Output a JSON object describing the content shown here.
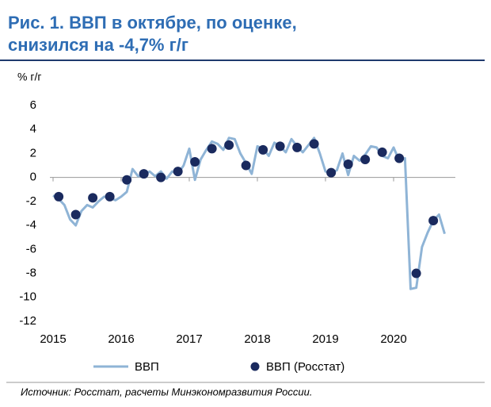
{
  "chart_data": {
    "type": "line",
    "title": "Рис. 1. ВВП в октябре, по оценке,",
    "title_line2": "снизился на -4,7% г/г",
    "y_label": "% г/г",
    "source": "Источник: Росстат, расчеты Минэкономразвития России.",
    "xlim": [
      2015,
      2021
    ],
    "xticks": [
      2015,
      2016,
      2017,
      2018,
      2019,
      2020
    ],
    "ylim": [
      -12,
      6
    ],
    "yticks": [
      6,
      4,
      2,
      0,
      -2,
      -4,
      -6,
      -8,
      -10,
      -12
    ],
    "series": [
      {
        "name": "ВВП",
        "type": "line",
        "color": "#8fb4d6",
        "x": [
          2015,
          2015.083,
          2015.167,
          2015.25,
          2015.333,
          2015.417,
          2015.5,
          2015.583,
          2015.667,
          2015.75,
          2015.833,
          2015.917,
          2016,
          2016.083,
          2016.167,
          2016.25,
          2016.333,
          2016.417,
          2016.5,
          2016.583,
          2016.667,
          2016.75,
          2016.833,
          2016.917,
          2017,
          2017.083,
          2017.167,
          2017.25,
          2017.333,
          2017.417,
          2017.5,
          2017.583,
          2017.667,
          2017.75,
          2017.833,
          2017.917,
          2018,
          2018.083,
          2018.167,
          2018.25,
          2018.333,
          2018.417,
          2018.5,
          2018.583,
          2018.667,
          2018.75,
          2018.833,
          2018.917,
          2019,
          2019.083,
          2019.167,
          2019.25,
          2019.333,
          2019.417,
          2019.5,
          2019.583,
          2019.667,
          2019.75,
          2019.833,
          2019.917,
          2020,
          2020.083,
          2020.167,
          2020.25,
          2020.333,
          2020.417,
          2020.5,
          2020.583,
          2020.667,
          2020.75
        ],
        "values": [
          -1.5,
          -1.8,
          -2.3,
          -3.5,
          -4.0,
          -2.8,
          -2.3,
          -2.5,
          -2.0,
          -1.6,
          -1.7,
          -1.9,
          -1.6,
          -1.2,
          0.7,
          0.1,
          0.2,
          0.5,
          0.1,
          0.5,
          -0.1,
          0.5,
          0.3,
          1.0,
          2.4,
          -0.2,
          1.5,
          2.3,
          3.0,
          2.8,
          2.3,
          3.3,
          3.2,
          2.0,
          1.2,
          0.3,
          2.6,
          2.4,
          1.8,
          2.9,
          2.6,
          2.1,
          3.2,
          2.6,
          2.1,
          2.7,
          3.3,
          2.0,
          0.5,
          0.4,
          0.6,
          2.0,
          0.2,
          1.8,
          1.4,
          1.9,
          2.6,
          2.5,
          1.8,
          1.6,
          2.5,
          1.4,
          1.6,
          -9.3,
          -9.2,
          -5.8,
          -4.6,
          -3.6,
          -3.1,
          -4.7
        ]
      },
      {
        "name": "ВВП (Росстат)",
        "type": "scatter",
        "color": "#1a2a5e",
        "x": [
          2015.083,
          2015.333,
          2015.583,
          2015.833,
          2016.083,
          2016.333,
          2016.583,
          2016.833,
          2017.083,
          2017.333,
          2017.583,
          2017.833,
          2018.083,
          2018.333,
          2018.583,
          2018.833,
          2019.083,
          2019.333,
          2019.583,
          2019.833,
          2020.083,
          2020.333,
          2020.583
        ],
        "values": [
          -1.6,
          -3.1,
          -1.7,
          -1.6,
          -0.2,
          0.3,
          0.0,
          0.5,
          1.3,
          2.4,
          2.7,
          1.0,
          2.3,
          2.6,
          2.5,
          2.8,
          0.4,
          1.1,
          1.5,
          2.1,
          1.6,
          -8.0,
          -3.6
        ]
      }
    ]
  }
}
